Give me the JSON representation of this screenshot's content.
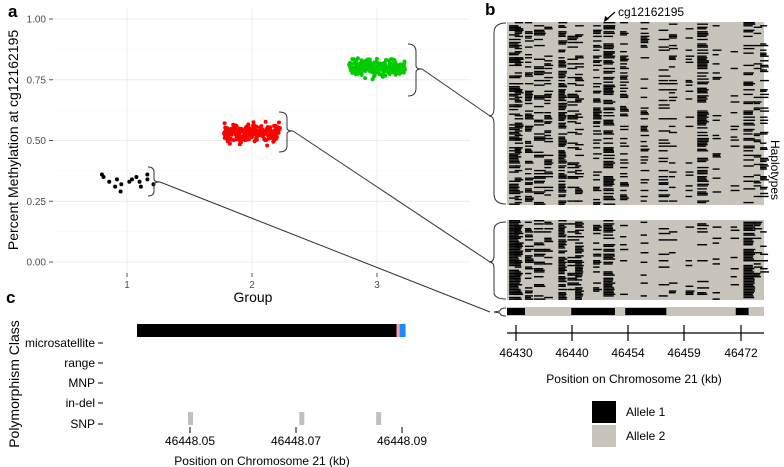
{
  "panel_labels": {
    "a": "a",
    "b": "b",
    "c": "c"
  },
  "colors": {
    "group1": "#000000",
    "group2": "#ff0000",
    "group3": "#00cc00",
    "allele1": "#000000",
    "allele2": "#c8c4bc",
    "grid": "#ececec",
    "microsatellite_pink": "#ff9ea0",
    "microsatellite_blue": "#1e88ff",
    "snp": "#bfbfbf"
  },
  "chart_data": [
    {
      "id": "a",
      "type": "scatter",
      "xlabel": "Group",
      "ylabel": "Percent Methylation at cg12162195",
      "categories": [
        "1",
        "2",
        "3"
      ],
      "yticks": [
        "0.00",
        "0.25",
        "0.50",
        "0.75",
        "1.00"
      ],
      "ylim": [
        0,
        1
      ],
      "series": [
        {
          "group": "1",
          "color": "#000000",
          "values": [
            0.36,
            0.35,
            0.33,
            0.31,
            0.34,
            0.29,
            0.32,
            0.33,
            0.34,
            0.35,
            0.33,
            0.31,
            0.36,
            0.34,
            0.32
          ]
        },
        {
          "group": "2",
          "color": "#ff0000",
          "center": 0.53,
          "spread": 0.035,
          "n": 220
        },
        {
          "group": "3",
          "color": "#00cc00",
          "center": 0.8,
          "spread": 0.03,
          "n": 260
        }
      ]
    },
    {
      "id": "b",
      "type": "heatmap",
      "annotation": "cg12162195",
      "right_label": "Haplotypes",
      "xlabel": "Position on Chromosome 21 (kb)",
      "xticks": [
        "46430",
        "46440",
        "46454",
        "46459",
        "46472"
      ]
    },
    {
      "id": "c",
      "type": "bar",
      "ylabel": "Polymorphism Class",
      "xlabel": "Position on Chromosome 21 (kb)",
      "categories": [
        "microsatellite",
        "range",
        "MNP",
        "in-del",
        "SNP"
      ],
      "xticks": [
        "46448.05",
        "46448.07",
        "46448.09"
      ],
      "microsatellite_range": [
        46448.04,
        46448.0905
      ],
      "snp_positions": [
        46448.05,
        46448.071,
        46448.0855
      ]
    }
  ],
  "legend": [
    {
      "label": "Allele 1",
      "color": "#000000"
    },
    {
      "label": "Allele 2",
      "color": "#c8c4bc"
    }
  ]
}
